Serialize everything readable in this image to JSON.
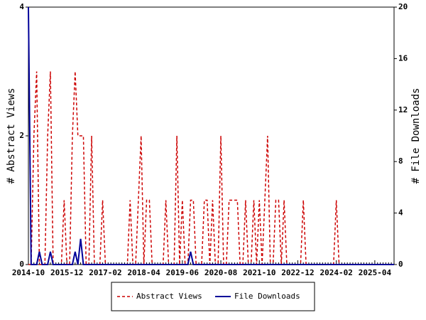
{
  "chart_data": {
    "type": "line",
    "categories": [
      "2014-10",
      null,
      null,
      null,
      null,
      null,
      null,
      null,
      null,
      null,
      null,
      null,
      null,
      null,
      "2015-12",
      null,
      null,
      null,
      null,
      null,
      null,
      null,
      null,
      null,
      null,
      null,
      null,
      null,
      "2017-02",
      null,
      null,
      null,
      null,
      null,
      null,
      null,
      null,
      null,
      null,
      null,
      null,
      null,
      "2018-04",
      null,
      null,
      null,
      null,
      null,
      null,
      null,
      null,
      null,
      null,
      null,
      null,
      null,
      "2019-06",
      null,
      null,
      null,
      null,
      null,
      null,
      null,
      null,
      null,
      null,
      null,
      null,
      null,
      "2020-08",
      null,
      null,
      null,
      null,
      null,
      null,
      null,
      null,
      null,
      null,
      null,
      null,
      null,
      "2021-10",
      null,
      null,
      null,
      null,
      null,
      null,
      null,
      null,
      null,
      null,
      null,
      null,
      null,
      "2022-12",
      null,
      null,
      null,
      null,
      null,
      null,
      null,
      null,
      null,
      null,
      null,
      null,
      null,
      "2024-02",
      null,
      null,
      null,
      null,
      null,
      null,
      null,
      null,
      null,
      null,
      null,
      null,
      null,
      "2025-04",
      null,
      null,
      null,
      null,
      null,
      null,
      null
    ],
    "series": [
      {
        "name": "Abstract Views",
        "color": "#cc0000",
        "axis": "y",
        "dashed": true,
        "values": [
          0,
          0,
          2,
          3,
          0,
          0,
          0,
          2,
          3,
          0,
          0,
          0,
          0,
          1,
          0,
          0,
          2,
          3,
          2,
          2,
          2,
          0,
          0,
          2,
          0,
          0,
          0,
          1,
          0,
          0,
          0,
          0,
          0,
          0,
          0,
          0,
          0,
          1,
          0,
          0,
          1,
          2,
          0,
          1,
          1,
          0,
          0,
          0,
          0,
          0,
          1,
          0,
          0,
          0,
          2,
          0,
          1,
          0,
          0,
          1,
          1,
          0,
          0,
          0,
          1,
          1,
          0,
          1,
          0,
          0,
          2,
          0,
          0,
          1,
          1,
          1,
          1,
          0,
          0,
          1,
          0,
          0,
          1,
          0,
          1,
          0,
          1,
          2,
          0,
          0,
          1,
          1,
          0,
          1,
          0,
          0,
          0,
          0,
          0,
          0,
          1,
          0,
          0,
          0,
          0,
          0,
          0,
          0,
          0,
          0,
          0,
          0,
          1,
          0,
          0,
          0,
          0,
          0,
          0,
          0,
          0,
          0,
          0,
          0,
          0,
          0,
          0,
          0,
          0,
          0,
          0,
          0,
          0,
          0
        ]
      },
      {
        "name": "File Downloads",
        "color": "#000099",
        "axis": "y2",
        "dashed": false,
        "values": [
          20,
          0,
          0,
          0,
          1,
          0,
          0,
          0,
          1,
          0,
          0,
          0,
          0,
          0,
          0,
          0,
          0,
          1,
          0,
          2,
          0,
          0,
          0,
          0,
          0,
          0,
          0,
          0,
          0,
          0,
          0,
          0,
          0,
          0,
          0,
          0,
          0,
          0,
          0,
          0,
          0,
          0,
          0,
          0,
          0,
          0,
          0,
          0,
          0,
          0,
          0,
          0,
          0,
          0,
          0,
          0,
          0,
          0,
          0,
          1,
          0,
          0,
          0,
          0,
          0,
          0,
          0,
          0,
          0,
          0,
          0,
          0,
          0,
          0,
          0,
          0,
          0,
          0,
          0,
          0,
          0,
          0,
          0,
          0,
          0,
          0,
          0,
          0,
          0,
          0,
          0,
          0,
          0,
          0,
          0,
          0,
          0,
          0,
          0,
          0,
          0,
          0,
          0,
          0,
          0,
          0,
          0,
          0,
          0,
          0,
          0,
          0,
          0,
          0,
          0,
          0,
          0,
          0,
          0,
          0,
          0,
          0,
          0,
          0,
          0,
          0,
          0,
          0,
          0,
          0,
          0,
          0,
          0,
          0
        ]
      }
    ],
    "ylabel": "# Abstract Views",
    "y2label": "# File Downloads",
    "ylim": [
      0,
      4
    ],
    "yticks": [
      0,
      2,
      4
    ],
    "y2lim": [
      0,
      20
    ],
    "y2ticks": [
      0,
      4,
      8,
      12,
      16,
      20
    ],
    "legend": "bottom"
  }
}
